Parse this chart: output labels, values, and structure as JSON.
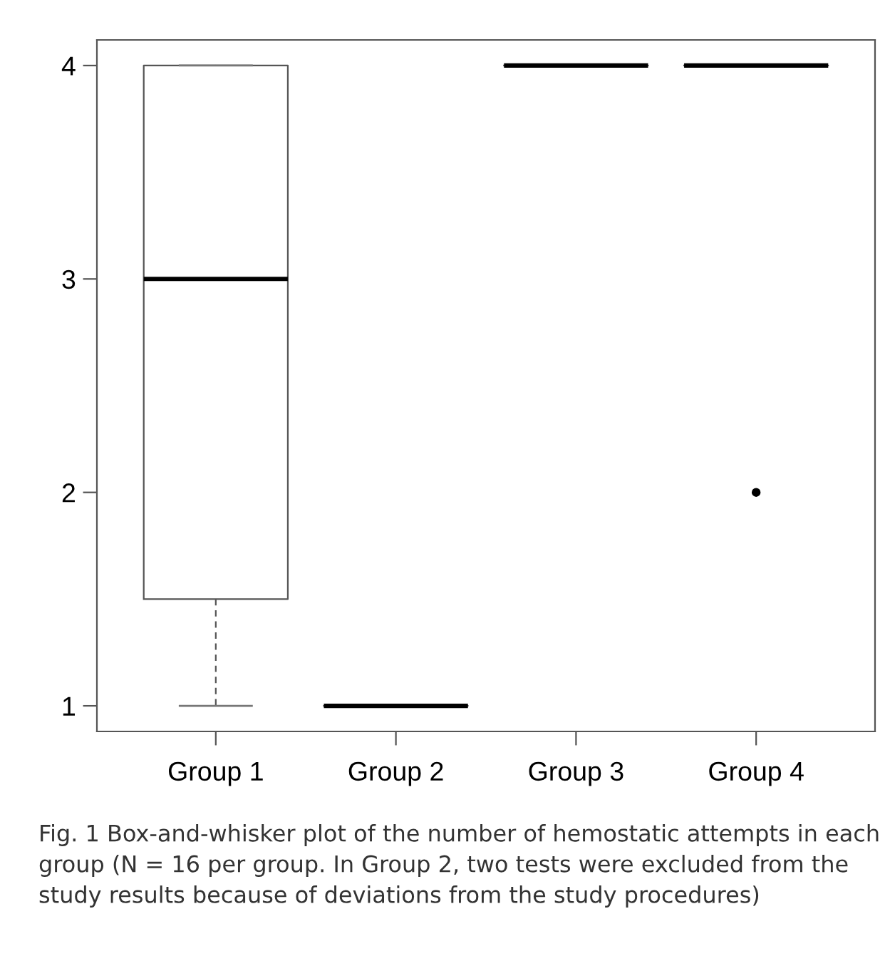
{
  "chart_data": {
    "type": "box",
    "categories": [
      "Group 1",
      "Group 2",
      "Group 3",
      "Group 4"
    ],
    "boxes": [
      {
        "low": 1,
        "q1": 1.5,
        "median": 3,
        "q3": 4,
        "high": 4
      },
      {
        "low": 1,
        "q1": 1,
        "median": 1,
        "q3": 1,
        "high": 1
      },
      {
        "low": 4,
        "q1": 4,
        "median": 4,
        "q3": 4,
        "high": 4
      },
      {
        "low": 4,
        "q1": 4,
        "median": 4,
        "q3": 4,
        "high": 4,
        "outliers": [
          2
        ]
      }
    ],
    "ylim": [
      0.88,
      4.12
    ],
    "yticks": [
      1,
      2,
      3,
      4
    ],
    "grid": false,
    "annotations": [
      "Fig. 1 Box-and-whisker plot of the number of hemostatic attempts in each group (N = 16 per group. In Group 2, two tests were excluded from the study results because of deviations from the study procedures)"
    ]
  }
}
